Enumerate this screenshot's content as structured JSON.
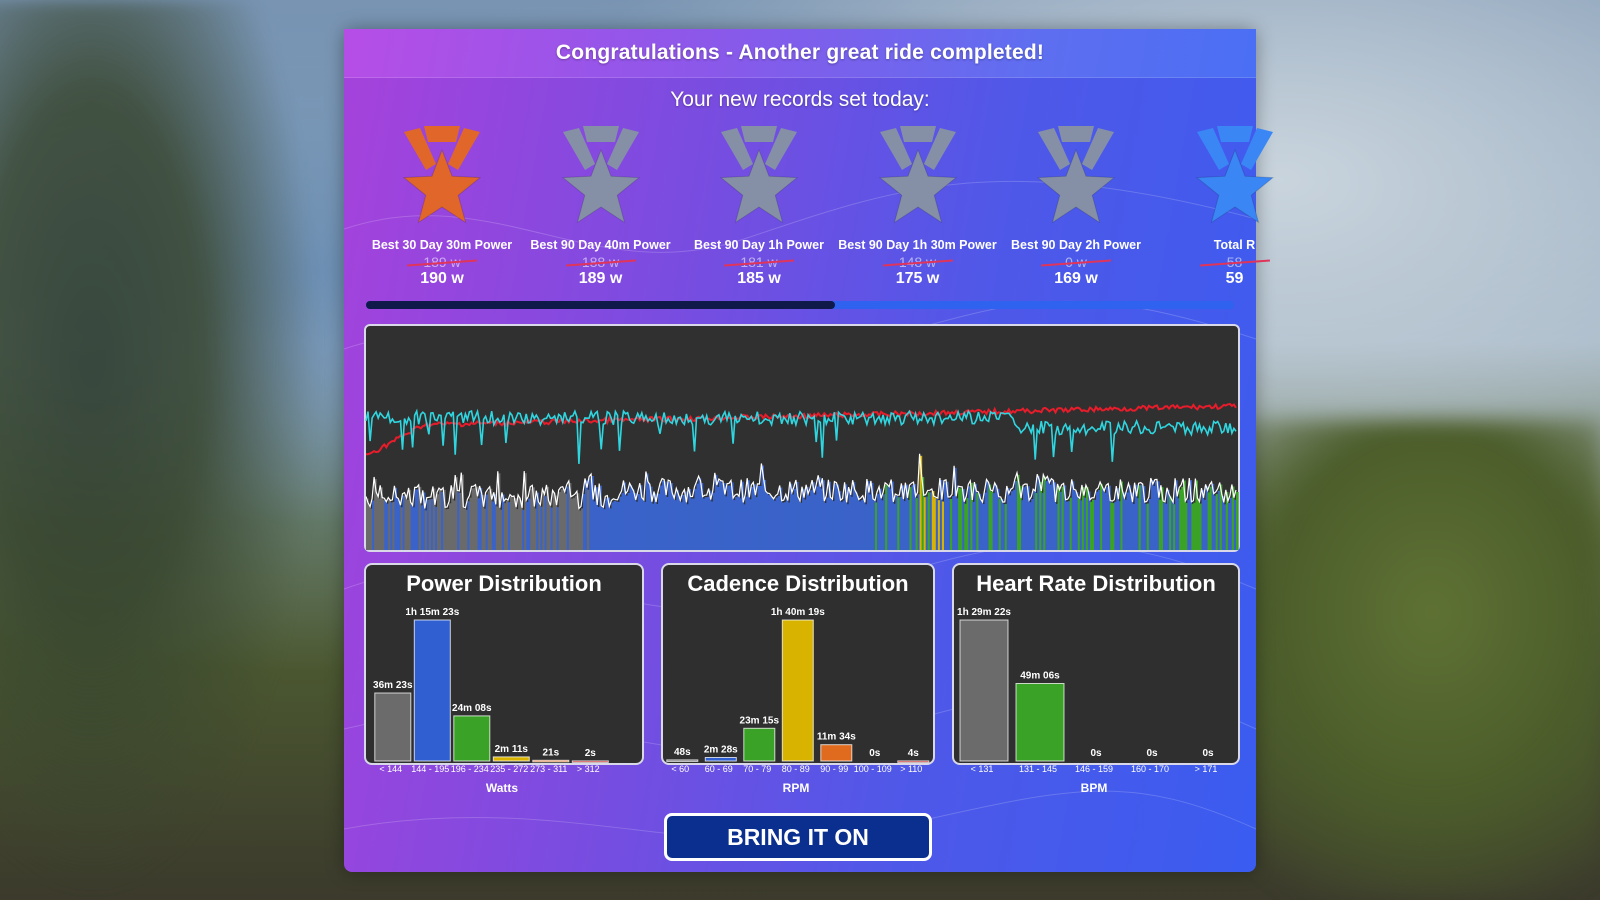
{
  "header": {
    "title": "Congratulations - Another great ride completed!"
  },
  "records": {
    "subtitle": "Your new records set today:",
    "items": [
      {
        "label": "Best 30 Day 30m Power",
        "old": "189 w",
        "new": "190 w",
        "medal": "bronze",
        "color": "#e0662a"
      },
      {
        "label": "Best 90 Day 40m Power",
        "old": "188 w",
        "new": "189 w",
        "medal": "silver",
        "color": "#8590a6"
      },
      {
        "label": "Best 90 Day 1h Power",
        "old": "181 w",
        "new": "185 w",
        "medal": "silver",
        "color": "#8590a6"
      },
      {
        "label": "Best 90 Day 1h 30m Power",
        "old": "148 w",
        "new": "175 w",
        "medal": "silver",
        "color": "#8590a6"
      },
      {
        "label": "Best 90 Day 2h Power",
        "old": "0 w",
        "new": "169 w",
        "medal": "silver",
        "color": "#8590a6"
      },
      {
        "label": "Total R",
        "old": "58",
        "new": "59",
        "medal": "blue",
        "color": "#3a86f5"
      }
    ],
    "scroll_progress": 0.54
  },
  "ride_graph": {
    "colors": {
      "power": "#ffffff",
      "heart_rate": "#e81c2a",
      "cadence": "#2fd6e0",
      "fill_blue": "#3a63c9",
      "fill_green": "#3aa327",
      "fill_yellow": "#d8b400",
      "fill_gray": "#6a6a6a"
    }
  },
  "power_distribution": {
    "title": "Power Distribution",
    "unit": "Watts",
    "chart_data": {
      "type": "bar",
      "title": "Power Distribution",
      "xlabel": "Watts",
      "categories": [
        "< 144",
        "144 - 195",
        "196 - 234",
        "235 - 272",
        "273 - 311",
        "> 312"
      ],
      "values": [
        36.38,
        75.38,
        24.13,
        2.18,
        0.35,
        0.03
      ],
      "value_labels": [
        "36m 23s",
        "1h 15m 23s",
        "24m 08s",
        "2m 11s",
        "21s",
        "2s"
      ],
      "colors": [
        "#6b6b6b",
        "#2f5fd0",
        "#3aa327",
        "#d8b400",
        "#e06a1e",
        "#cc2a2a"
      ]
    }
  },
  "cadence_distribution": {
    "title": "Cadence Distribution",
    "unit": "RPM",
    "chart_data": {
      "type": "bar",
      "title": "Cadence Distribution",
      "xlabel": "RPM",
      "categories": [
        "< 60",
        "60 - 69",
        "70 - 79",
        "80 - 89",
        "90 - 99",
        "100 - 109",
        "> 110"
      ],
      "values": [
        0.8,
        2.47,
        23.25,
        100.32,
        11.57,
        0.0,
        0.07
      ],
      "value_labels": [
        "48s",
        "2m 28s",
        "23m 15s",
        "1h 40m 19s",
        "11m 34s",
        "0s",
        "4s"
      ],
      "colors": [
        "#6b6b6b",
        "#2f5fd0",
        "#3aa327",
        "#d8b400",
        "#e06a1e",
        "#cc2a2a",
        "#cc2a2a"
      ]
    }
  },
  "heart_rate_distribution": {
    "title": "Heart Rate Distribution",
    "unit": "BPM",
    "chart_data": {
      "type": "bar",
      "title": "Heart Rate Distribution",
      "xlabel": "BPM",
      "categories": [
        "< 131",
        "131 - 145",
        "146 - 159",
        "160 - 170",
        "> 171"
      ],
      "values": [
        89.37,
        49.1,
        0,
        0,
        0
      ],
      "value_labels": [
        "1h 29m 22s",
        "49m 06s",
        "0s",
        "0s",
        "0s"
      ],
      "colors": [
        "#6b6b6b",
        "#3aa327",
        "#d8b400",
        "#e06a1e",
        "#cc2a2a"
      ]
    }
  },
  "cta": {
    "label": "BRING IT ON"
  }
}
